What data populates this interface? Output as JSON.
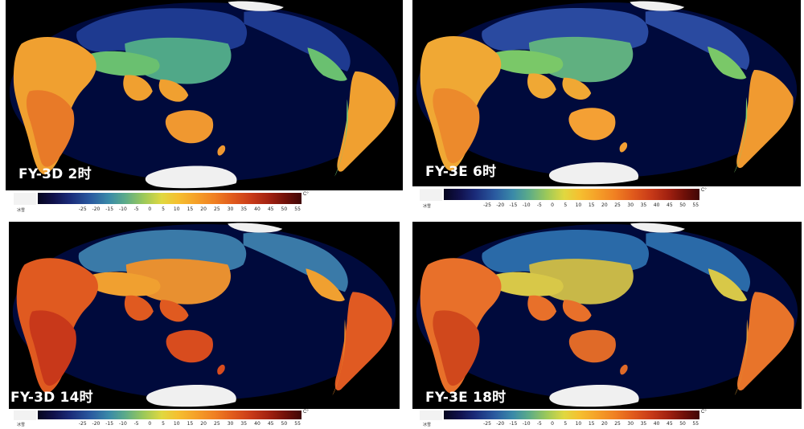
{
  "panels": [
    {
      "id": "p1",
      "label": "FY-3D 2时",
      "variant": "night"
    },
    {
      "id": "p2",
      "label": "FY-3E 6时",
      "variant": "morning"
    },
    {
      "id": "p3",
      "label": "FY-3D 14时",
      "variant": "hot"
    },
    {
      "id": "p4",
      "label": "FY-3E 18时",
      "variant": "evening"
    }
  ],
  "legend": {
    "ice_label": "冰雪",
    "unit": "C°",
    "ticks": [
      "-25",
      "-20",
      "-15",
      "-10",
      "-5",
      "0",
      "5",
      "10",
      "15",
      "20",
      "25",
      "30",
      "35",
      "40",
      "45",
      "50",
      "55"
    ]
  },
  "colors": {
    "ocean": "#000a3c",
    "background": "#000000",
    "ice": "#f0f0f0"
  }
}
